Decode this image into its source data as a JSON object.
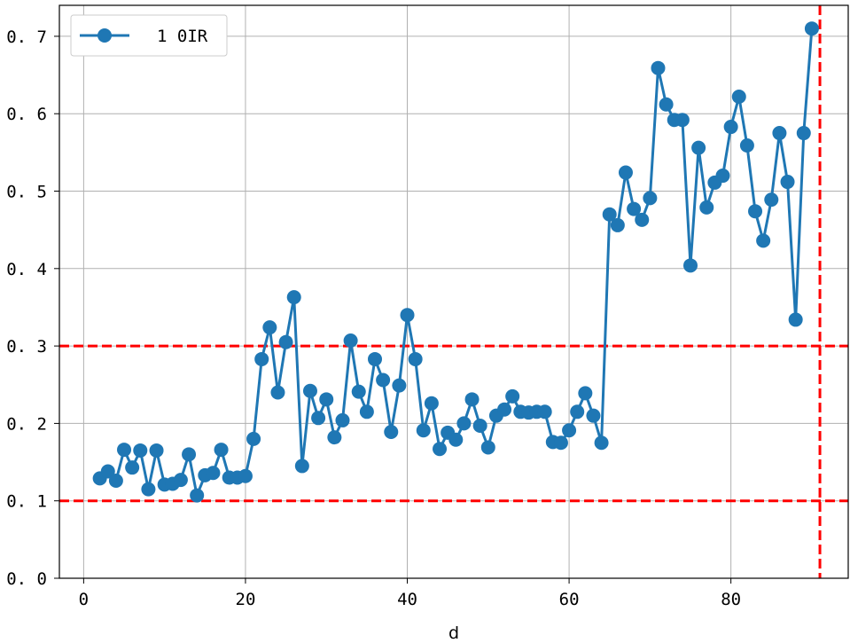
{
  "chart_data": {
    "type": "line",
    "xlabel": "d",
    "ylabel": "",
    "xlim": [
      -3,
      94.5
    ],
    "ylim": [
      0,
      0.74
    ],
    "xticks": [
      0,
      20,
      40,
      60,
      80
    ],
    "xtick_labels": [
      "0",
      "20",
      "40",
      "60",
      "80"
    ],
    "yticks": [
      0,
      0.1,
      0.2,
      0.3,
      0.4,
      0.5,
      0.6,
      0.7
    ],
    "ytick_labels": [
      "0. 0",
      "0. 1",
      "0. 2",
      "0. 3",
      "0. 4",
      "0. 5",
      "0. 6",
      "0. 7"
    ],
    "grid": true,
    "legend_position": "top-left",
    "series": [
      {
        "name": "1 0IR",
        "color": "#1f77b4",
        "marker": "circle",
        "x": [
          2,
          3,
          4,
          5,
          6,
          7,
          8,
          9,
          10,
          11,
          12,
          13,
          14,
          15,
          16,
          17,
          18,
          19,
          20,
          21,
          22,
          23,
          24,
          25,
          26,
          27,
          28,
          29,
          30,
          31,
          32,
          33,
          34,
          35,
          36,
          37,
          38,
          39,
          40,
          41,
          42,
          43,
          44,
          45,
          46,
          47,
          48,
          49,
          50,
          51,
          52,
          53,
          54,
          55,
          56,
          57,
          58,
          59,
          60,
          61,
          62,
          63,
          64,
          65,
          66,
          67,
          68,
          69,
          70,
          71,
          72,
          73,
          74,
          75,
          76,
          77,
          78,
          79,
          80,
          81,
          82,
          83,
          84,
          85,
          86,
          87,
          88,
          89,
          90
        ],
        "y": [
          0.129,
          0.138,
          0.126,
          0.166,
          0.143,
          0.165,
          0.115,
          0.165,
          0.121,
          0.122,
          0.127,
          0.16,
          0.107,
          0.133,
          0.136,
          0.166,
          0.13,
          0.13,
          0.132,
          0.18,
          0.283,
          0.324,
          0.24,
          0.305,
          0.363,
          0.145,
          0.242,
          0.207,
          0.231,
          0.182,
          0.204,
          0.307,
          0.241,
          0.215,
          0.283,
          0.256,
          0.189,
          0.249,
          0.34,
          0.283,
          0.191,
          0.226,
          0.167,
          0.188,
          0.179,
          0.2,
          0.231,
          0.197,
          0.169,
          0.21,
          0.218,
          0.235,
          0.215,
          0.214,
          0.215,
          0.215,
          0.176,
          0.175,
          0.191,
          0.215,
          0.239,
          0.21,
          0.175,
          0.47,
          0.456,
          0.524,
          0.477,
          0.463,
          0.491,
          0.659,
          0.612,
          0.592,
          0.592,
          0.404,
          0.556,
          0.479,
          0.511,
          0.52,
          0.583,
          0.622,
          0.559,
          0.474,
          0.436,
          0.489,
          0.575,
          0.512,
          0.334,
          0.575,
          0.71
        ]
      }
    ],
    "reference_lines": [
      {
        "orientation": "horizontal",
        "value": 0.1,
        "color": "#ff0000",
        "style": "dashed"
      },
      {
        "orientation": "horizontal",
        "value": 0.3,
        "color": "#ff0000",
        "style": "dashed"
      },
      {
        "orientation": "vertical",
        "value": 91,
        "color": "#ff0000",
        "style": "dashed"
      }
    ]
  }
}
